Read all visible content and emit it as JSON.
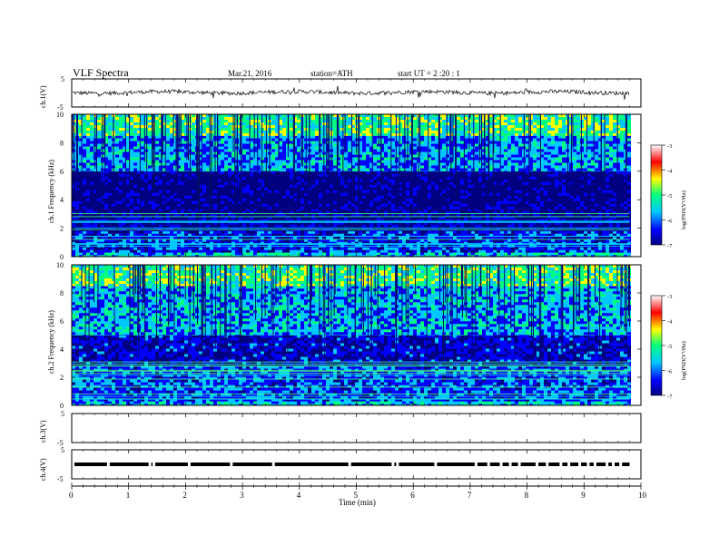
{
  "header": {
    "title": "VLF  Spectra",
    "date": "Mar.21, 2016",
    "station": "station=ATH",
    "start_ut": "start  UT  =   2  :20 : 1"
  },
  "chart_data": [
    {
      "type": "line",
      "panel": "ch.1 waveform",
      "ylabel": "ch.1(V)",
      "y_ticks": [
        "5",
        "-5"
      ],
      "ylim": [
        -5,
        5
      ],
      "x_end_min": 9.8,
      "baseline_v": 0.2
    },
    {
      "type": "heatmap",
      "panel": "ch.1 spectrogram",
      "ylabel": "ch.1  Frequency  (kHz)",
      "y_ticks": [
        "0",
        "2",
        "4",
        "6",
        "8",
        "10"
      ],
      "ylim": [
        0,
        10
      ],
      "xlim": [
        0,
        9.8
      ],
      "colorbar": {
        "label": "log(PSD(V²/Hz)",
        "ticks": [
          "-3",
          "-4",
          "-5",
          "-6",
          "-7"
        ],
        "range": [
          -7,
          -3
        ],
        "colors": [
          "#000080",
          "#0000ff",
          "#00c8ff",
          "#00ff80",
          "#ffff00",
          "#ff0000",
          "#ffffff"
        ]
      },
      "bands_khz": [
        {
          "from": 0.0,
          "to": 0.3,
          "level": -5.5
        },
        {
          "from": 0.3,
          "to": 1.8,
          "level": -6.2
        },
        {
          "from": 1.8,
          "to": 3.2,
          "level": -6.6
        },
        {
          "from": 3.2,
          "to": 6.0,
          "level": -6.8
        },
        {
          "from": 6.0,
          "to": 8.5,
          "level": -5.7
        },
        {
          "from": 8.5,
          "to": 10.0,
          "level": -5.0
        }
      ]
    },
    {
      "type": "heatmap",
      "panel": "ch.2 spectrogram",
      "ylabel": "ch.2  Frequency  (kHz)",
      "y_ticks": [
        "0",
        "2",
        "4",
        "6",
        "8",
        "10"
      ],
      "ylim": [
        0,
        10
      ],
      "xlim": [
        0,
        9.8
      ],
      "colorbar": {
        "label": "log(PSD(V²/Hz)",
        "ticks": [
          "-3",
          "-4",
          "-5",
          "-6",
          "-7"
        ],
        "range": [
          -7,
          -3
        ],
        "colors": [
          "#000080",
          "#0000ff",
          "#00c8ff",
          "#00ff80",
          "#ffff00",
          "#ff0000",
          "#ffffff"
        ]
      },
      "bands_khz": [
        {
          "from": 0.0,
          "to": 0.3,
          "level": -5.5
        },
        {
          "from": 0.3,
          "to": 2.8,
          "level": -6.0
        },
        {
          "from": 2.8,
          "to": 5.0,
          "level": -6.4
        },
        {
          "from": 5.0,
          "to": 8.5,
          "level": -5.6
        },
        {
          "from": 8.5,
          "to": 10.0,
          "level": -5.0
        }
      ]
    },
    {
      "type": "line",
      "panel": "ch.3 waveform",
      "ylabel": "ch.3(V)",
      "y_ticks": [
        "5",
        "-5"
      ],
      "ylim": [
        -5,
        5
      ]
    },
    {
      "type": "line",
      "panel": "ch.4 waveform",
      "ylabel": "ch.4(V)",
      "y_ticks": [
        "5",
        "-5"
      ],
      "ylim": [
        -5,
        5
      ],
      "x_end_min": 9.8,
      "baseline_v": 0.0,
      "gaps_min": [
        0.62,
        1.35,
        1.42,
        2.04,
        2.78,
        3.52,
        4.86,
        5.62,
        5.7,
        6.37,
        7.08,
        7.3,
        7.52,
        7.68,
        7.84,
        8.15,
        8.33,
        8.57,
        8.71,
        8.9,
        9.05,
        9.17,
        9.38,
        9.49,
        9.62
      ]
    },
    {
      "type": "axis",
      "xlabel": "Time  (min)",
      "x_ticks": [
        "0",
        "1",
        "2",
        "3",
        "4",
        "5",
        "6",
        "7",
        "8",
        "9",
        "10"
      ],
      "xlim": [
        0,
        10
      ]
    }
  ]
}
